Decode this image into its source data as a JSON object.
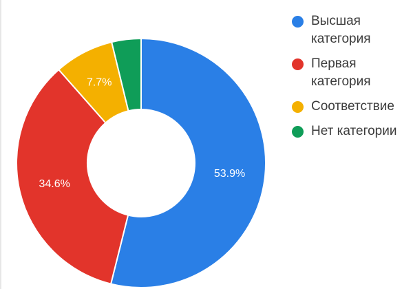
{
  "chart_data": {
    "type": "pie",
    "donut": true,
    "categories": [
      "Высшая\nкатегория",
      "Первая\nкатегория",
      "Соответствие",
      "Нет категории"
    ],
    "values": [
      53.9,
      34.6,
      7.7,
      3.8
    ],
    "data_labels": [
      "53.9%",
      "34.6%",
      "7.7%",
      ""
    ],
    "colors": [
      "#2a7fe6",
      "#e2342b",
      "#f4b000",
      "#0f9d58"
    ],
    "legend_position": "right"
  }
}
